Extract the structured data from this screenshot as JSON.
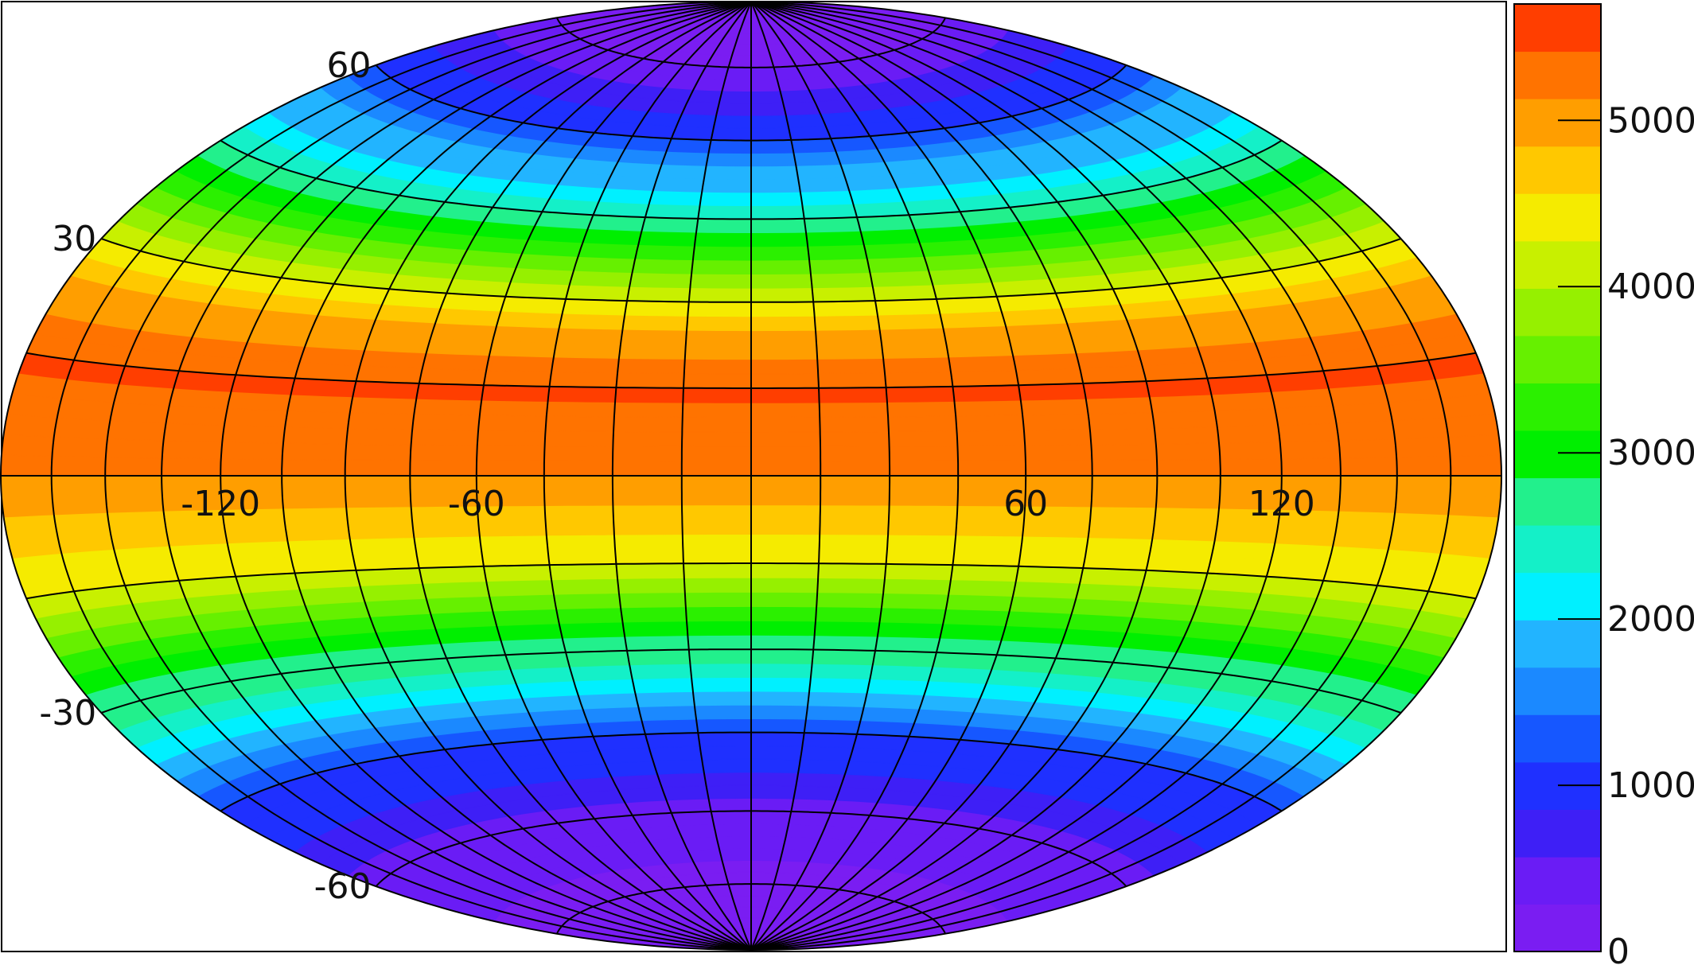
{
  "chart_data": {
    "type": "heatmap",
    "projection": "aitoff-hammer",
    "title": "",
    "xlabel": "",
    "ylabel": "",
    "grid": true,
    "xlim": [
      -180,
      180
    ],
    "ylim": [
      -90,
      90
    ],
    "grid_step_deg": 15,
    "x_tick_labels": [
      {
        "value": -120,
        "label": "-120"
      },
      {
        "value": -60,
        "label": "-60"
      },
      {
        "value": 60,
        "label": "60"
      },
      {
        "value": 120,
        "label": "120"
      }
    ],
    "y_tick_labels": [
      {
        "value": 60,
        "label": "60"
      },
      {
        "value": 30,
        "label": "30"
      },
      {
        "value": -30,
        "label": "-30"
      },
      {
        "value": -60,
        "label": "-60"
      }
    ],
    "latitude_profile": {
      "lat": [
        -90,
        -75,
        -60,
        -45,
        -30,
        -15,
        0,
        15,
        30,
        45,
        60,
        75,
        90
      ],
      "values": [
        100,
        200,
        450,
        1200,
        2700,
        4200,
        5100,
        5500,
        4400,
        2600,
        1100,
        300,
        100
      ]
    },
    "colorbar": {
      "min": 0,
      "max": 5700,
      "tick_labels": [
        {
          "value": 0,
          "label": "0"
        },
        {
          "value": 1000,
          "label": "1000"
        },
        {
          "value": 2000,
          "label": "2000"
        },
        {
          "value": 3000,
          "label": "3000"
        },
        {
          "value": 4000,
          "label": "4000"
        },
        {
          "value": 5000,
          "label": "5000"
        }
      ],
      "levels": [
        {
          "value": 0,
          "color": "#7a1df2"
        },
        {
          "value": 285,
          "color": "#6a1cf5"
        },
        {
          "value": 570,
          "color": "#3e1ff6"
        },
        {
          "value": 855,
          "color": "#1f30ff"
        },
        {
          "value": 1140,
          "color": "#1657ff"
        },
        {
          "value": 1425,
          "color": "#1b89ff"
        },
        {
          "value": 1710,
          "color": "#22b4ff"
        },
        {
          "value": 1995,
          "color": "#00f0ff"
        },
        {
          "value": 2280,
          "color": "#14f0c8"
        },
        {
          "value": 2565,
          "color": "#22f08c"
        },
        {
          "value": 2850,
          "color": "#00ef00"
        },
        {
          "value": 3135,
          "color": "#2bf000"
        },
        {
          "value": 3420,
          "color": "#66f000"
        },
        {
          "value": 3705,
          "color": "#96f000"
        },
        {
          "value": 3990,
          "color": "#c8f000"
        },
        {
          "value": 4275,
          "color": "#f5eb00"
        },
        {
          "value": 4560,
          "color": "#ffc800"
        },
        {
          "value": 4845,
          "color": "#ff9e00"
        },
        {
          "value": 5130,
          "color": "#ff7300"
        },
        {
          "value": 5415,
          "color": "#ff3e00"
        },
        {
          "value": 5700,
          "color": "#ff0000"
        }
      ]
    }
  }
}
